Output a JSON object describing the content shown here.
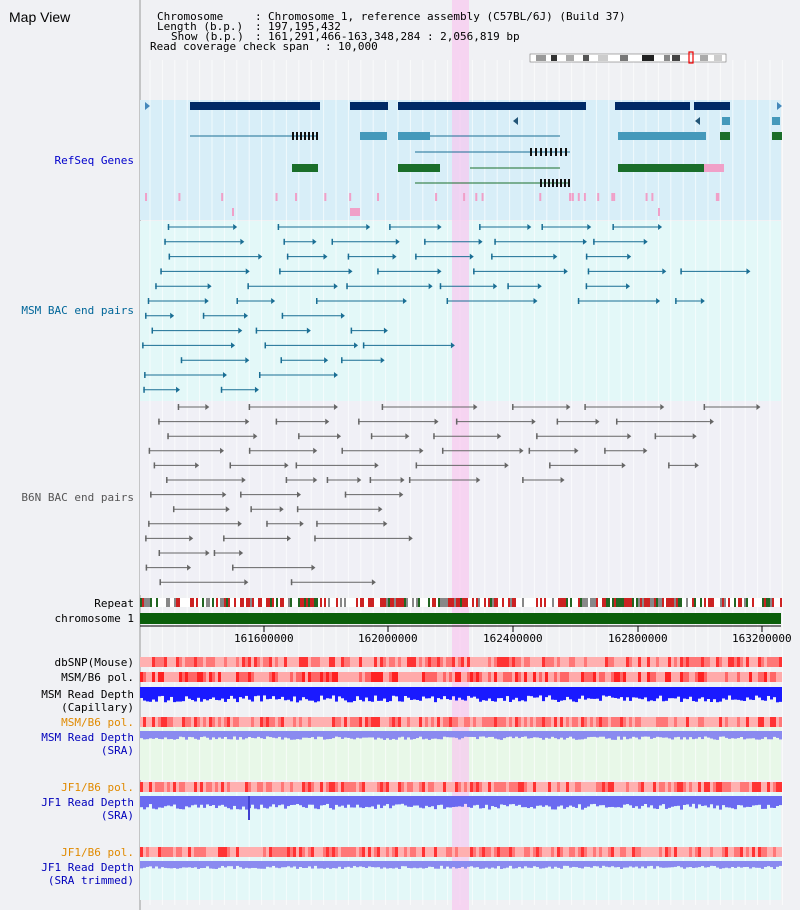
{
  "view": {
    "title": "Map View",
    "info": {
      "chromosome_label": "Chromosome",
      "chromosome_value": "Chromosome 1, reference assembly (C57BL/6J) (Build 37)",
      "length_label": "Length (b.p.)",
      "length_value": "197,195,432",
      "show_label": "Show (b.p.)",
      "show_value": "161,291,466-163,348,284 : 2,056,819 bp",
      "coverage_label": "Read coverage check span",
      "coverage_value": "10,000"
    }
  },
  "tracks": {
    "refseq": "RefSeq Genes",
    "msm_bac": "MSM BAC end pairs",
    "b6n_bac": "B6N BAC end pairs",
    "repeat": "Repeat",
    "chromosome": "chromosome 1",
    "dbsnp": "dbSNP(Mouse)",
    "msm_b6_pol_1": "MSM/B6 pol.",
    "msm_depth_cap_1": "MSM Read Depth",
    "msm_depth_cap_2": "(Capillary)",
    "msm_b6_pol_2": "MSM/B6 pol.",
    "msm_depth_sra_1": "MSM Read Depth",
    "msm_depth_sra_2": "(SRA)",
    "jf1_b6_pol_1": "JF1/B6 pol.",
    "jf1_depth_sra_1": "JF1 Read Depth",
    "jf1_depth_sra_2": "(SRA)",
    "jf1_b6_pol_2": "JF1/B6 pol.",
    "jf1_depth_trim_1": "JF1 Read Depth",
    "jf1_depth_trim_2": "(SRA trimmed)"
  },
  "axis": {
    "ticks": [
      "161600000",
      "162000000",
      "162400000",
      "162800000",
      "163200000"
    ]
  },
  "colors": {
    "refseq_label": "#0000cc",
    "msm_label": "#006699",
    "b6n_label": "#555555",
    "pol_orange": "#e08a00",
    "depth_blue": "#0000bb"
  }
}
